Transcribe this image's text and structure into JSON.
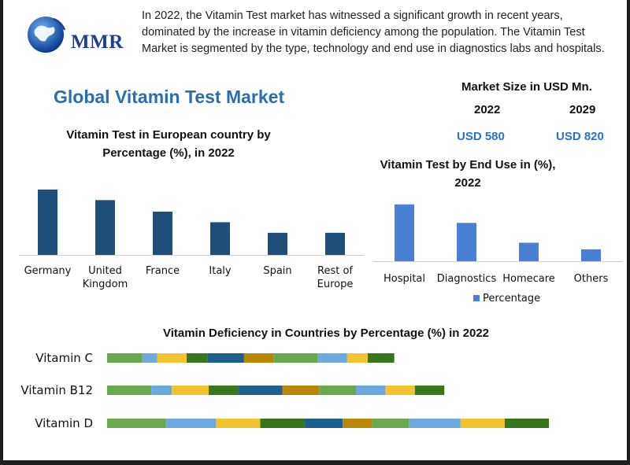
{
  "header": {
    "logo_text": "MMR",
    "intro": "In 2022, the Vitamin Test market has witnessed a significant growth in recent years, dominated by the increase in vitamin deficiency among the population. The Vitamin Test Market is segmented by the type, technology and end use in diagnostics labs and hospitals.",
    "main_title": "Global Vitamin Test Market"
  },
  "market_size": {
    "title": "Market Size in USD Mn.",
    "year_1": "2022",
    "year_2": "2029",
    "value_1": "USD 580",
    "value_2": "USD 820"
  },
  "colors": {
    "europe_bar": "#1f4e79",
    "enduse_bar": "#4a7fd4",
    "title_blue": "#2d6da8",
    "value_blue": "#2a73c4",
    "stack_palette": [
      "#6aa84f",
      "#6fa8dc",
      "#f1c232",
      "#38761d",
      "#1f5f8b",
      "#b8860b"
    ]
  },
  "chart_data": [
    {
      "type": "bar",
      "title": "Vitamin Test in European country by Percentage (%), in 2022",
      "categories": [
        "Germany",
        "United Kingdom",
        "France",
        "Italy",
        "Spain",
        "Rest of Europe"
      ],
      "values": [
        34,
        28.5,
        22.5,
        17,
        11.5,
        11.5
      ],
      "ylim": [
        0,
        36
      ],
      "grid": false,
      "xlabel": "",
      "ylabel": ""
    },
    {
      "type": "bar",
      "title": "Vitamin Test by End Use in (%), 2022",
      "categories": [
        "Hospital",
        "Diagnostics",
        "Homecare",
        "Others"
      ],
      "series": [
        {
          "name": "Percentage",
          "values": [
            43,
            29,
            14,
            9
          ]
        }
      ],
      "ylim": [
        0,
        50
      ],
      "legend": "bottom",
      "grid": false
    },
    {
      "type": "bar",
      "orientation": "horizontal",
      "stacked": true,
      "title": "Vitamin Deficiency in Countries by Percentage (%) in 2022",
      "categories": [
        "Vitamin C",
        "Vitamin B12",
        "Vitamin D"
      ],
      "segments": [
        [
          12,
          5,
          10,
          7,
          12.5,
          10,
          15,
          10,
          7,
          9
        ],
        [
          15,
          7,
          12.5,
          10,
          15,
          12.5,
          12.5,
          10,
          10,
          10
        ],
        [
          20,
          17,
          15,
          15,
          13,
          10,
          12.5,
          17.5,
          15,
          15
        ]
      ],
      "grid": false
    }
  ]
}
